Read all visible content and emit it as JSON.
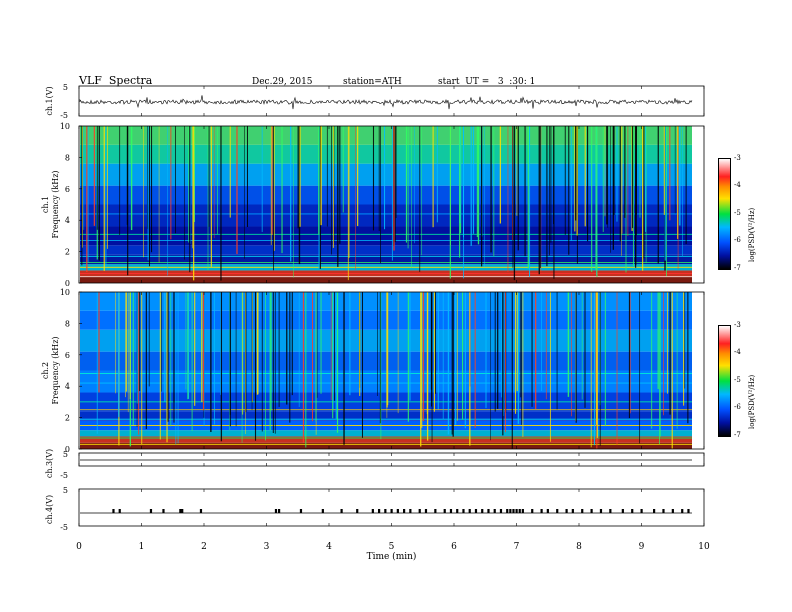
{
  "header": {
    "title": "VLF  Spectra",
    "date": "Dec.29, 2015",
    "station": "station=ATH",
    "start": "start  UT =   3  :30: 1"
  },
  "colors": {
    "spectrogram_low": "#000000",
    "spectrogram_mid": "#0050ff",
    "spectrogram_high": "#ffe000",
    "spectrogram_peak": "#ff2020"
  },
  "chart_data": [
    {
      "type": "line",
      "name": "ch1-waveform",
      "ylabel": "ch.1(V)",
      "y_ticks": [
        "5",
        "-5"
      ],
      "ylim": [
        -5,
        5
      ],
      "xlim": [
        0,
        10
      ],
      "note": "noisy waveform around ~0 V"
    },
    {
      "type": "heatmap",
      "name": "ch1-spectrogram",
      "ylabel": "ch.1\nFrequency (kHz)",
      "ylabel_top": "ch.1",
      "ylabel_bottom": "Frequency (kHz)",
      "y_ticks": [
        "0",
        "2",
        "4",
        "6",
        "8",
        "10"
      ],
      "ylim": [
        0,
        10
      ],
      "xlim": [
        0,
        10
      ],
      "colorbar": {
        "label": "log(PSD(V²/Hz)",
        "ticks": [
          "-3",
          "-4",
          "-5",
          "-6",
          "-7"
        ],
        "range": [
          -7,
          -3
        ]
      }
    },
    {
      "type": "heatmap",
      "name": "ch2-spectrogram",
      "ylabel_top": "ch.2",
      "ylabel_bottom": "Frequency (kHz)",
      "y_ticks": [
        "0",
        "2",
        "4",
        "6",
        "8",
        "10"
      ],
      "ylim": [
        0,
        10
      ],
      "xlim": [
        0,
        10
      ],
      "colorbar": {
        "label": "log(PSD(V²/Hz)",
        "ticks": [
          "-3",
          "-4",
          "-5",
          "-6",
          "-7"
        ],
        "range": [
          -7,
          -3
        ]
      }
    },
    {
      "type": "line",
      "name": "ch3-waveform",
      "ylabel": "ch.3(V)",
      "y_ticks": [
        "5",
        "-5"
      ],
      "ylim": [
        -5,
        5
      ],
      "xlim": [
        0,
        10
      ]
    },
    {
      "type": "line",
      "name": "ch4-waveform",
      "ylabel": "ch.4(V)",
      "y_ticks": [
        "5",
        "-5"
      ],
      "ylim": [
        -5,
        5
      ],
      "xlim": [
        0,
        10
      ],
      "pulse_times_min": [
        0.55,
        0.65,
        1.15,
        1.35,
        1.62,
        1.65,
        1.95,
        3.15,
        3.2,
        3.55,
        3.9,
        4.2,
        4.45,
        4.7,
        4.8,
        4.9,
        5.0,
        5.1,
        5.2,
        5.3,
        5.45,
        5.55,
        5.7,
        5.85,
        5.95,
        6.05,
        6.15,
        6.25,
        6.35,
        6.45,
        6.55,
        6.65,
        6.75,
        6.85,
        6.9,
        6.95,
        7.0,
        7.05,
        7.1,
        7.25,
        7.4,
        7.5,
        7.65,
        7.8,
        7.9,
        8.05,
        8.2,
        8.35,
        8.5,
        8.7,
        8.85,
        9.0,
        9.2,
        9.35,
        9.5,
        9.65,
        9.75
      ]
    }
  ],
  "x_axis": {
    "label": "Time  (min)",
    "ticks": [
      "0",
      "1",
      "2",
      "3",
      "4",
      "5",
      "6",
      "7",
      "8",
      "9",
      "10"
    ]
  }
}
